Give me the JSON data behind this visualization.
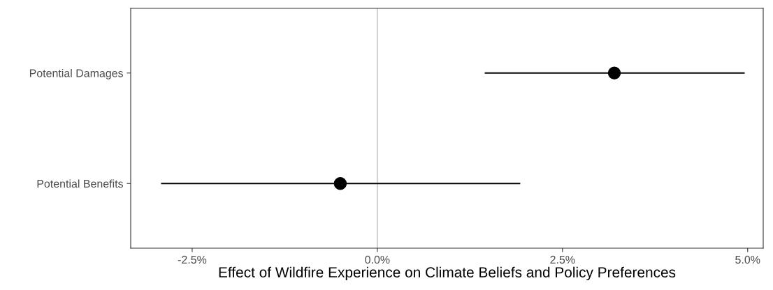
{
  "chart_data": {
    "type": "scatter",
    "orientation": "horizontal",
    "xlabel": "Effect of Wildfire Experience on Climate Beliefs and Policy Preferences",
    "categories": [
      "Potential Damages",
      "Potential Benefits"
    ],
    "values": [
      3.2,
      -0.5
    ],
    "errors": [
      [
        1.45,
        4.96
      ],
      [
        -2.92,
        1.93
      ]
    ],
    "color": "#000000",
    "marker": "circle",
    "xlim": [
      -3.33,
      5.21
    ],
    "xticks": [
      {
        "value": -2.5,
        "label": "-2.5%"
      },
      {
        "value": 0,
        "label": "0.0%"
      },
      {
        "value": 2.5,
        "label": "2.5%"
      },
      {
        "value": 5,
        "label": "5.0%"
      }
    ],
    "ref_lines": [
      {
        "axis": "x",
        "value": 0,
        "color": "#bebebe"
      }
    ],
    "grid": false
  }
}
